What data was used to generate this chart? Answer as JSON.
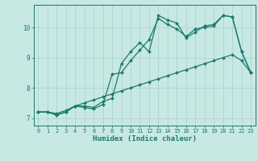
{
  "xlabel": "Humidex (Indice chaleur)",
  "xlim": [
    -0.5,
    23.5
  ],
  "ylim": [
    6.75,
    10.75
  ],
  "xticks": [
    0,
    1,
    2,
    3,
    4,
    5,
    6,
    7,
    8,
    9,
    10,
    11,
    12,
    13,
    14,
    15,
    16,
    17,
    18,
    19,
    20,
    21,
    22,
    23
  ],
  "yticks": [
    7,
    8,
    9,
    10
  ],
  "background_color": "#c8e8e4",
  "grid_color": "#a8d0cc",
  "line_color": "#1a7a6e",
  "line1_x": [
    0,
    1,
    2,
    3,
    4,
    5,
    6,
    7,
    8,
    9,
    10,
    11,
    12,
    13,
    14,
    15,
    16,
    17,
    18,
    19,
    20,
    21,
    22,
    23
  ],
  "line1_y": [
    7.2,
    7.2,
    7.1,
    7.2,
    7.4,
    7.4,
    7.35,
    7.55,
    7.65,
    8.8,
    9.2,
    9.5,
    9.2,
    10.4,
    10.25,
    10.15,
    9.65,
    9.85,
    10.05,
    10.1,
    10.4,
    10.35,
    9.2,
    8.5
  ],
  "line2_x": [
    0,
    1,
    2,
    3,
    4,
    5,
    6,
    7,
    8,
    9,
    10,
    11,
    12,
    13,
    14,
    15,
    16,
    17,
    18,
    19,
    20,
    21,
    22,
    23
  ],
  "line2_y": [
    7.2,
    7.2,
    7.1,
    7.2,
    7.4,
    7.35,
    7.3,
    7.45,
    8.45,
    8.5,
    8.9,
    9.25,
    9.6,
    10.3,
    10.1,
    9.95,
    9.7,
    9.95,
    10.0,
    10.05,
    10.4,
    10.35,
    9.2,
    8.5
  ],
  "line3_x": [
    0,
    1,
    2,
    3,
    4,
    5,
    6,
    7,
    8,
    9,
    10,
    11,
    12,
    13,
    14,
    15,
    16,
    17,
    18,
    19,
    20,
    21,
    22,
    23
  ],
  "line3_y": [
    7.2,
    7.2,
    7.15,
    7.25,
    7.4,
    7.5,
    7.6,
    7.7,
    7.8,
    7.9,
    8.0,
    8.1,
    8.2,
    8.3,
    8.4,
    8.5,
    8.6,
    8.7,
    8.8,
    8.9,
    9.0,
    9.1,
    8.9,
    8.5
  ],
  "marker": "D",
  "markersize": 2.0,
  "linewidth": 0.9,
  "tick_fontsize": 5.0,
  "xlabel_fontsize": 6.5
}
